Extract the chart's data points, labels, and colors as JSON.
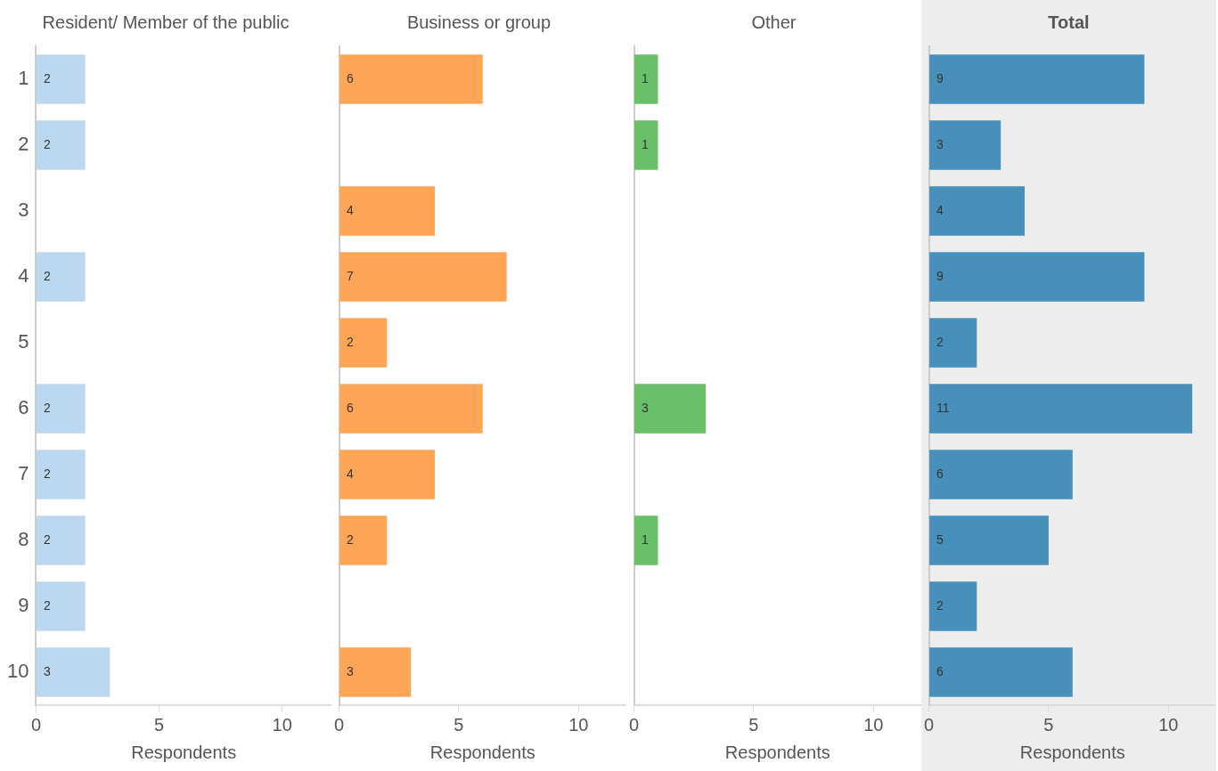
{
  "chart_data": [
    {
      "type": "bar",
      "orientation": "horizontal",
      "title": "Resident/ Member of the public",
      "xlabel": "Respondents",
      "categories": [
        "1",
        "2",
        "3",
        "4",
        "5",
        "6",
        "7",
        "8",
        "9",
        "10"
      ],
      "values": [
        2,
        2,
        null,
        2,
        null,
        2,
        2,
        2,
        2,
        3
      ],
      "color": "#bcd8f0",
      "xlim": [
        0,
        12
      ],
      "xticks": [
        0,
        5,
        10
      ],
      "data_labels": true,
      "grid": false,
      "legend": false
    },
    {
      "type": "bar",
      "orientation": "horizontal",
      "title": "Business or group",
      "xlabel": "Respondents",
      "categories": [
        "1",
        "2",
        "3",
        "4",
        "5",
        "6",
        "7",
        "8",
        "9",
        "10"
      ],
      "values": [
        6,
        null,
        4,
        7,
        2,
        6,
        4,
        2,
        null,
        3
      ],
      "color": "#ffa556",
      "xlim": [
        0,
        12
      ],
      "xticks": [
        0,
        5,
        10
      ],
      "data_labels": true,
      "grid": false,
      "legend": false,
      "tick_labels": "x"
    },
    {
      "type": "bar",
      "orientation": "horizontal",
      "title": "Other",
      "xlabel": "Respondents",
      "categories": [
        "1",
        "2",
        "3",
        "4",
        "5",
        "6",
        "7",
        "8",
        "9",
        "10"
      ],
      "values": [
        1,
        1,
        null,
        null,
        null,
        3,
        null,
        1,
        null,
        null
      ],
      "color": "#6abf69",
      "xlim": [
        0,
        12
      ],
      "xticks": [
        0,
        5,
        10
      ],
      "data_labels": true,
      "grid": false,
      "legend": false,
      "tick_labels": "x"
    },
    {
      "type": "bar",
      "orientation": "horizontal",
      "title": "Total",
      "xlabel": "Respondents",
      "categories": [
        "1",
        "2",
        "3",
        "4",
        "5",
        "6",
        "7",
        "8",
        "9",
        "10"
      ],
      "values": [
        9,
        3,
        4,
        9,
        2,
        11,
        6,
        5,
        2,
        6
      ],
      "color": "#4690bb",
      "xlim": [
        0,
        12
      ],
      "xticks": [
        0,
        5,
        10
      ],
      "data_labels": true,
      "grid": false,
      "legend": false,
      "tick_labels": "x"
    }
  ]
}
